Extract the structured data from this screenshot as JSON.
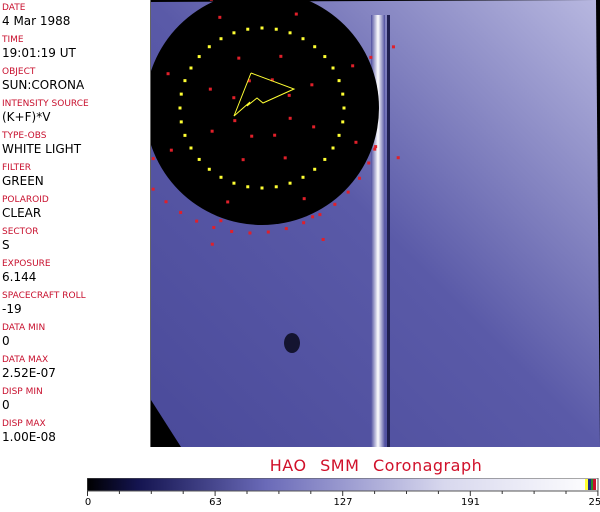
{
  "header_fields": [
    {
      "label": "DATE",
      "value": "4 Mar 1988"
    },
    {
      "label": "TIME",
      "value": "19:01:19 UT"
    },
    {
      "label": "OBJECT",
      "value": "SUN:CORONA"
    },
    {
      "label": "INTENSITY SOURCE",
      "value": "(K+F)*V"
    },
    {
      "label": "TYPE-OBS",
      "value": "WHITE LIGHT"
    },
    {
      "label": "FILTER",
      "value": "GREEN"
    },
    {
      "label": "POLAROID",
      "value": "CLEAR"
    },
    {
      "label": "SECTOR",
      "value": "S"
    },
    {
      "label": "EXPOSURE",
      "value": "6.144"
    },
    {
      "label": "SPACECRAFT ROLL",
      "value": "-19"
    },
    {
      "label": "DATA MIN",
      "value": "0"
    },
    {
      "label": "DATA MAX",
      "value": "2.52E-07"
    },
    {
      "label": "DISP MIN",
      "value": "0"
    },
    {
      "label": "DISP MAX",
      "value": "1.00E-08"
    }
  ],
  "title": "HAO  SMM Coronagraph",
  "colorbar": {
    "ticks": [
      "0",
      "63",
      "127",
      "191",
      "255"
    ],
    "colors": [
      "#000000",
      "#1a1a66",
      "#6a6ab8",
      "#c8c8e6",
      "#ffffff"
    ]
  },
  "colors": {
    "label": "#c8102e",
    "overlay_red": "#e0202a",
    "overlay_yellow": "#ffff33"
  }
}
